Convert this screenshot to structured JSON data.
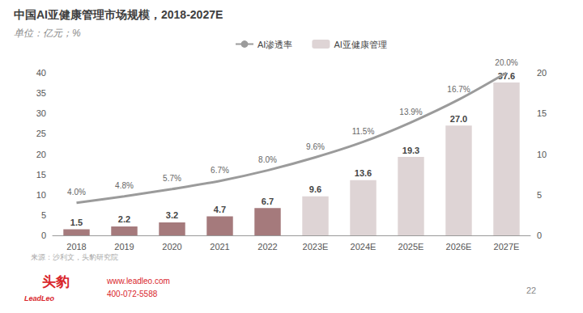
{
  "chart_data": {
    "type": "bar",
    "title": "中国AI亚健康管理市场规模，2018-2027E",
    "subtitle": "单位：亿元；%",
    "categories": [
      "2018",
      "2019",
      "2020",
      "2021",
      "2022",
      "2023E",
      "2024E",
      "2025E",
      "2026E",
      "2027E"
    ],
    "series": [
      {
        "name": "AI渗透率",
        "type": "line",
        "axis": "y2",
        "color": "#9b9b9b",
        "values": [
          4.0,
          4.8,
          5.7,
          6.7,
          8.0,
          9.6,
          11.5,
          13.9,
          16.7,
          20.0
        ],
        "value_labels": [
          "4.0%",
          "4.8%",
          "5.7%",
          "6.7%",
          "8.0%",
          "9.6%",
          "11.5%",
          "13.9%",
          "16.7%",
          "20.0%"
        ]
      },
      {
        "name": "AI亚健康管理",
        "type": "bar",
        "color": "#ded4d5",
        "colors": [
          "#a57a7c",
          "#a57a7c",
          "#a57a7c",
          "#a57a7c",
          "#a57a7c",
          "#ded4d5",
          "#ded4d5",
          "#ded4d5",
          "#ded4d5",
          "#ded4d5"
        ],
        "values": [
          1.5,
          2.2,
          3.2,
          4.7,
          6.7,
          9.6,
          13.6,
          19.3,
          27.0,
          37.6
        ],
        "value_labels": [
          "1.5",
          "2.2",
          "3.2",
          "4.7",
          "6.7",
          "9.6",
          "13.6",
          "19.3",
          "27.0",
          "37.6"
        ]
      }
    ],
    "ylim": [
      0,
      40
    ],
    "yticks": [
      0,
      5,
      10,
      15,
      20,
      25,
      30,
      35,
      40
    ],
    "y2lim": [
      0,
      20
    ],
    "y2ticks": [
      0,
      5,
      10,
      15,
      20
    ],
    "grid": false,
    "legend": "top",
    "data_labels": true,
    "source": "来源：沙利文，头豹研究院",
    "footer": {
      "brand": "头豹",
      "brand_en": "LeadLeo",
      "url": "www.leadleo.com",
      "phone": "400-072-5588",
      "page": "22"
    }
  }
}
